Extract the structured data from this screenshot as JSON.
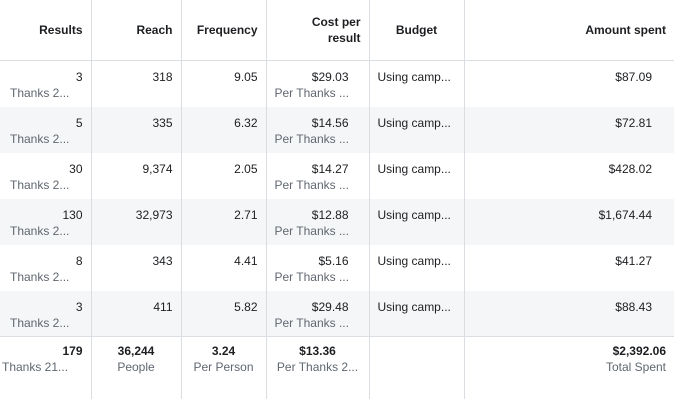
{
  "columns": {
    "results": "Results",
    "reach": "Reach",
    "frequency": "Frequency",
    "cost_line1": "Cost per",
    "cost_line2": "result",
    "budget": "Budget",
    "amount_spent": "Amount spent"
  },
  "rows": [
    {
      "results": "3",
      "results_sub": "Thanks 2...",
      "reach": "318",
      "frequency": "9.05",
      "cost": "$29.03",
      "cost_sub": "Per Thanks ...",
      "budget": "Using camp...",
      "amount": "$87.09"
    },
    {
      "results": "5",
      "results_sub": "Thanks 2...",
      "reach": "335",
      "frequency": "6.32",
      "cost": "$14.56",
      "cost_sub": "Per Thanks ...",
      "budget": "Using camp...",
      "amount": "$72.81"
    },
    {
      "results": "30",
      "results_sub": "Thanks 2...",
      "reach": "9,374",
      "frequency": "2.05",
      "cost": "$14.27",
      "cost_sub": "Per Thanks ...",
      "budget": "Using camp...",
      "amount": "$428.02"
    },
    {
      "results": "130",
      "results_sub": "Thanks 2...",
      "reach": "32,973",
      "frequency": "2.71",
      "cost": "$12.88",
      "cost_sub": "Per Thanks ...",
      "budget": "Using camp...",
      "amount": "$1,674.44"
    },
    {
      "results": "8",
      "results_sub": "Thanks 2...",
      "reach": "343",
      "frequency": "4.41",
      "cost": "$5.16",
      "cost_sub": "Per Thanks ...",
      "budget": "Using camp...",
      "amount": "$41.27"
    },
    {
      "results": "3",
      "results_sub": "Thanks 2...",
      "reach": "411",
      "frequency": "5.82",
      "cost": "$29.48",
      "cost_sub": "Per Thanks ...",
      "budget": "Using camp...",
      "amount": "$88.43"
    }
  ],
  "totals": {
    "results": "179",
    "results_sub": "Thanks 21...",
    "reach": "36,244",
    "reach_sub": "People",
    "frequency": "3.24",
    "frequency_sub": "Per Person",
    "cost": "$13.36",
    "cost_sub": "Per Thanks 2...",
    "amount": "$2,392.06",
    "amount_sub": "Total Spent"
  }
}
